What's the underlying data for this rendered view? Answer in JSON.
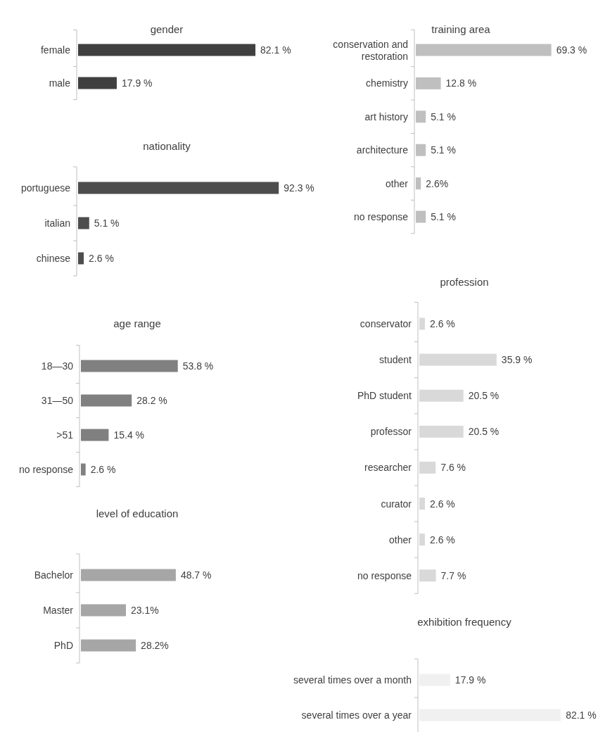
{
  "chart_data": [
    {
      "type": "bar",
      "orientation": "horizontal",
      "title": "gender",
      "categories": [
        "female",
        "male"
      ],
      "values": [
        82.1,
        17.9
      ],
      "value_labels": [
        "82.1 %",
        "17.9 %"
      ],
      "color": "#404040"
    },
    {
      "type": "bar",
      "orientation": "horizontal",
      "title": "nationality",
      "categories": [
        "portuguese",
        "italian",
        "chinese"
      ],
      "values": [
        92.3,
        5.1,
        2.6
      ],
      "value_labels": [
        "92.3 %",
        "5.1 %",
        "2.6 %"
      ],
      "color": "#4d4d4d"
    },
    {
      "type": "bar",
      "orientation": "horizontal",
      "title": "age range",
      "categories": [
        "18—30",
        "31—50",
        ">51",
        "no response"
      ],
      "values": [
        53.8,
        28.2,
        15.4,
        2.6
      ],
      "value_labels": [
        "53.8 %",
        "28.2 %",
        "15.4 %",
        "2.6 %"
      ],
      "color": "#808080"
    },
    {
      "type": "bar",
      "orientation": "horizontal",
      "title": "level of education",
      "categories": [
        "Bachelor",
        "Master",
        "PhD"
      ],
      "values": [
        48.7,
        23.1,
        28.2
      ],
      "value_labels": [
        "48.7 %",
        "23.1%",
        "28.2%"
      ],
      "color": "#a6a6a6"
    },
    {
      "type": "bar",
      "orientation": "horizontal",
      "title": "training area",
      "categories": [
        "conservation and restoration",
        "chemistry",
        "art history",
        "architecture",
        "other",
        "no response"
      ],
      "values": [
        69.3,
        12.8,
        5.1,
        5.1,
        2.6,
        5.1
      ],
      "value_labels": [
        "69.3 %",
        "12.8 %",
        "5.1 %",
        "5.1 %",
        "2.6%",
        "5.1 %"
      ],
      "color": "#bfbfbf"
    },
    {
      "type": "bar",
      "orientation": "horizontal",
      "title": "profession",
      "categories": [
        "conservator",
        "student",
        "PhD student",
        "professor",
        "researcher",
        "curator",
        "other",
        "no response"
      ],
      "values": [
        2.6,
        35.9,
        20.5,
        20.5,
        7.6,
        2.6,
        2.6,
        7.7
      ],
      "value_labels": [
        "2.6 %",
        "35.9 %",
        "20.5 %",
        "20.5 %",
        "7.6 %",
        "2.6 %",
        "2.6 %",
        "7.7 %"
      ],
      "color": "#d9d9d9"
    },
    {
      "type": "bar",
      "orientation": "horizontal",
      "title": "exhibition frequency",
      "categories": [
        "several times over a month",
        "several times over a year"
      ],
      "values": [
        17.9,
        82.1
      ],
      "value_labels": [
        "17.9 %",
        "82.1 %"
      ],
      "color": "#f0f0f0"
    }
  ]
}
